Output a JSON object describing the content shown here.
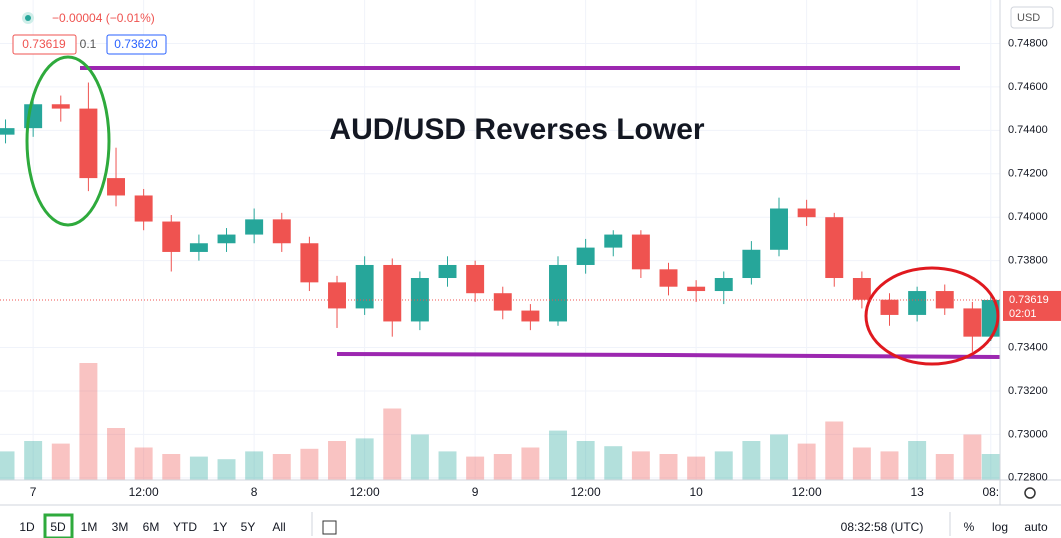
{
  "header": {
    "change": "−0.00004 (−0.01%)",
    "bid": "0.73619",
    "spread": "0.1",
    "ask": "0.73620",
    "currency": "USD"
  },
  "chart_data": {
    "type": "candlestick",
    "title": "AUD/USD Reverses Lower",
    "x": [
      -3,
      0,
      3,
      6,
      9,
      12,
      15,
      18,
      21,
      24,
      27,
      30,
      33,
      36,
      39,
      42,
      45,
      48,
      51,
      54,
      57,
      60,
      63,
      66,
      69,
      72,
      75,
      78,
      81,
      84,
      87,
      90,
      93,
      96,
      99,
      102,
      104
    ],
    "open": [
      0.7438,
      0.7441,
      0.7452,
      0.745,
      0.7418,
      0.741,
      0.7398,
      0.7384,
      0.7388,
      0.7392,
      0.7399,
      0.7388,
      0.737,
      0.7358,
      0.7378,
      0.7352,
      0.7372,
      0.7378,
      0.7365,
      0.7357,
      0.7352,
      0.7378,
      0.7386,
      0.7392,
      0.7376,
      0.7368,
      0.7366,
      0.7372,
      0.7385,
      0.7404,
      0.74,
      0.7372,
      0.7362,
      0.7355,
      0.7366,
      0.7358,
      0.7345
    ],
    "high": [
      0.7445,
      0.7457,
      0.7456,
      0.7462,
      0.7432,
      0.7413,
      0.7401,
      0.7392,
      0.7395,
      0.7404,
      0.7402,
      0.7391,
      0.7373,
      0.7382,
      0.7381,
      0.7375,
      0.7382,
      0.738,
      0.7368,
      0.736,
      0.7382,
      0.739,
      0.7394,
      0.7394,
      0.7379,
      0.7371,
      0.7375,
      0.7389,
      0.7409,
      0.7408,
      0.7402,
      0.7375,
      0.7365,
      0.7368,
      0.7369,
      0.7361,
      0.7364
    ],
    "low": [
      0.7434,
      0.7437,
      0.7444,
      0.7412,
      0.7405,
      0.7394,
      0.7375,
      0.738,
      0.7384,
      0.7388,
      0.7384,
      0.7366,
      0.7349,
      0.7355,
      0.7345,
      0.7348,
      0.7368,
      0.7361,
      0.7353,
      0.7348,
      0.735,
      0.7374,
      0.7382,
      0.7372,
      0.7364,
      0.7361,
      0.736,
      0.7369,
      0.7382,
      0.7396,
      0.7368,
      0.7358,
      0.735,
      0.7352,
      0.7355,
      0.7338,
      0.7343
    ],
    "close": [
      0.7441,
      0.7452,
      0.745,
      0.7418,
      0.741,
      0.7398,
      0.7384,
      0.7388,
      0.7392,
      0.7399,
      0.7388,
      0.737,
      0.7358,
      0.7378,
      0.7352,
      0.7372,
      0.7378,
      0.7365,
      0.7357,
      0.7352,
      0.7378,
      0.7386,
      0.7392,
      0.7376,
      0.7368,
      0.7366,
      0.7372,
      0.7385,
      0.7404,
      0.74,
      0.7372,
      0.7362,
      0.7355,
      0.7366,
      0.7358,
      0.7345,
      0.73619
    ],
    "volume": [
      22,
      30,
      28,
      90,
      40,
      25,
      20,
      18,
      16,
      22,
      20,
      24,
      30,
      32,
      55,
      35,
      22,
      18,
      20,
      25,
      38,
      30,
      26,
      22,
      20,
      18,
      22,
      30,
      35,
      28,
      45,
      25,
      22,
      30,
      20,
      35,
      20
    ],
    "up_color": "#26a69a",
    "down_color": "#ef5350",
    "xlim": [
      -3.6,
      105
    ],
    "xticks": [
      {
        "value": 0,
        "label": "7"
      },
      {
        "value": 12,
        "label": "12:00"
      },
      {
        "value": 24,
        "label": "8"
      },
      {
        "value": 36,
        "label": "12:00"
      },
      {
        "value": 48,
        "label": "9"
      },
      {
        "value": 60,
        "label": "12:00"
      },
      {
        "value": 72,
        "label": "10"
      },
      {
        "value": 84,
        "label": "12:00"
      },
      {
        "value": 96,
        "label": "13"
      },
      {
        "value": 104,
        "label": "08:"
      }
    ],
    "ylim": [
      0.7279,
      0.75
    ],
    "yticks": [
      {
        "value": 0.728,
        "label": "0.72800"
      },
      {
        "value": 0.73,
        "label": "0.73000"
      },
      {
        "value": 0.732,
        "label": "0.73200"
      },
      {
        "value": 0.734,
        "label": "0.73400"
      },
      {
        "value": 0.738,
        "label": "0.73800"
      },
      {
        "value": 0.74,
        "label": "0.74000"
      },
      {
        "value": 0.742,
        "label": "0.74200"
      },
      {
        "value": 0.744,
        "label": "0.74400"
      },
      {
        "value": 0.746,
        "label": "0.74600"
      },
      {
        "value": 0.748,
        "label": "0.74800"
      }
    ],
    "vlim": [
      0,
      100
    ],
    "grid": true,
    "countdown": "02:01"
  },
  "toolbar": {
    "ranges": [
      "1D",
      "5D",
      "1M",
      "3M",
      "6M",
      "YTD",
      "1Y",
      "5Y",
      "All"
    ],
    "selected": 1,
    "clock": "08:32:58 (UTC)",
    "scale_options": [
      "%",
      "log",
      "auto"
    ]
  }
}
